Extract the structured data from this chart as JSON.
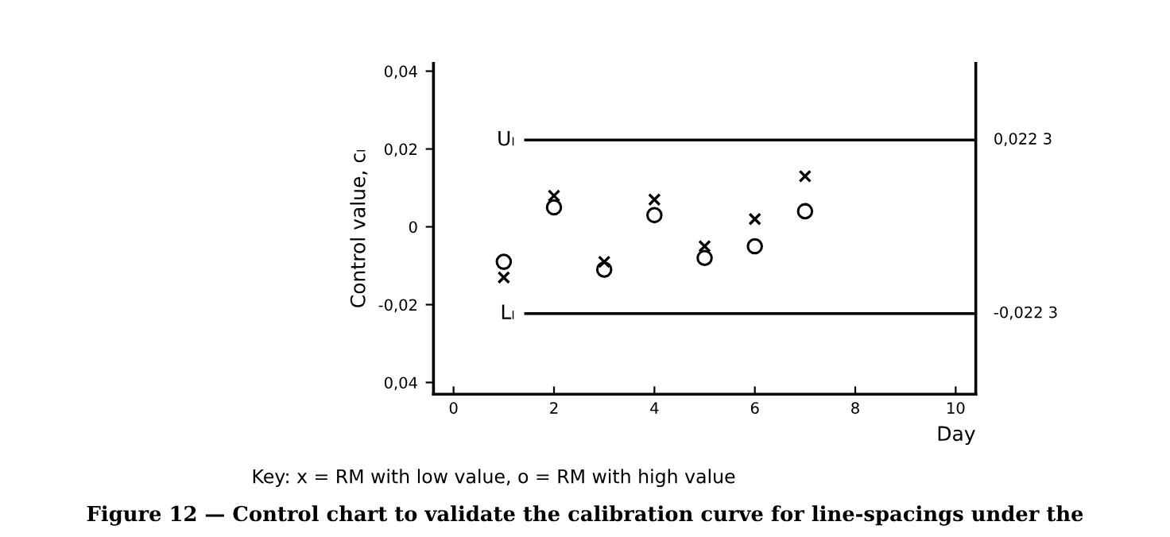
{
  "chart_data": {
    "type": "scatter",
    "x": [
      1,
      2,
      3,
      4,
      5,
      6,
      7
    ],
    "series": [
      {
        "color": "#000000",
        "marker": "cross",
        "values": [
          -0.013,
          0.008,
          -0.009,
          0.007,
          -0.005,
          0.002,
          0.013
        ]
      },
      {
        "color": "#000000",
        "marker": "circle",
        "values": [
          -0.009,
          0.005,
          -0.011,
          0.003,
          -0.008,
          -0.005,
          0.004
        ]
      }
    ],
    "xlabel": "Day",
    "ylabel": "Control value, cₗ",
    "xlim": [
      -0.4,
      10.4
    ],
    "xticks": [
      0,
      2,
      4,
      6,
      8,
      10
    ],
    "ylim": [
      -0.043,
      0.042
    ],
    "yticks": [
      {
        "value": -0.04,
        "label": "0,04"
      },
      {
        "value": -0.02,
        "label": "-0,02"
      },
      0,
      {
        "value": 0.02,
        "label": "0,02"
      },
      {
        "value": 0.04,
        "label": "0,04"
      }
    ],
    "ref_lines": [
      {
        "axis": "y",
        "value": 0.0223,
        "label": "0,022 3",
        "color": "#000000"
      },
      {
        "axis": "y",
        "value": -0.0223,
        "label": "-0,022 3",
        "color": "#000000"
      }
    ],
    "annotations": [
      "Uₗ",
      "Lₗ",
      "Key: x = RM with low value, o = RM with high value",
      "Figure 12 — Control chart to validate the calibration curve for line-spacings under the"
    ],
    "grid": false,
    "legend": false
  }
}
